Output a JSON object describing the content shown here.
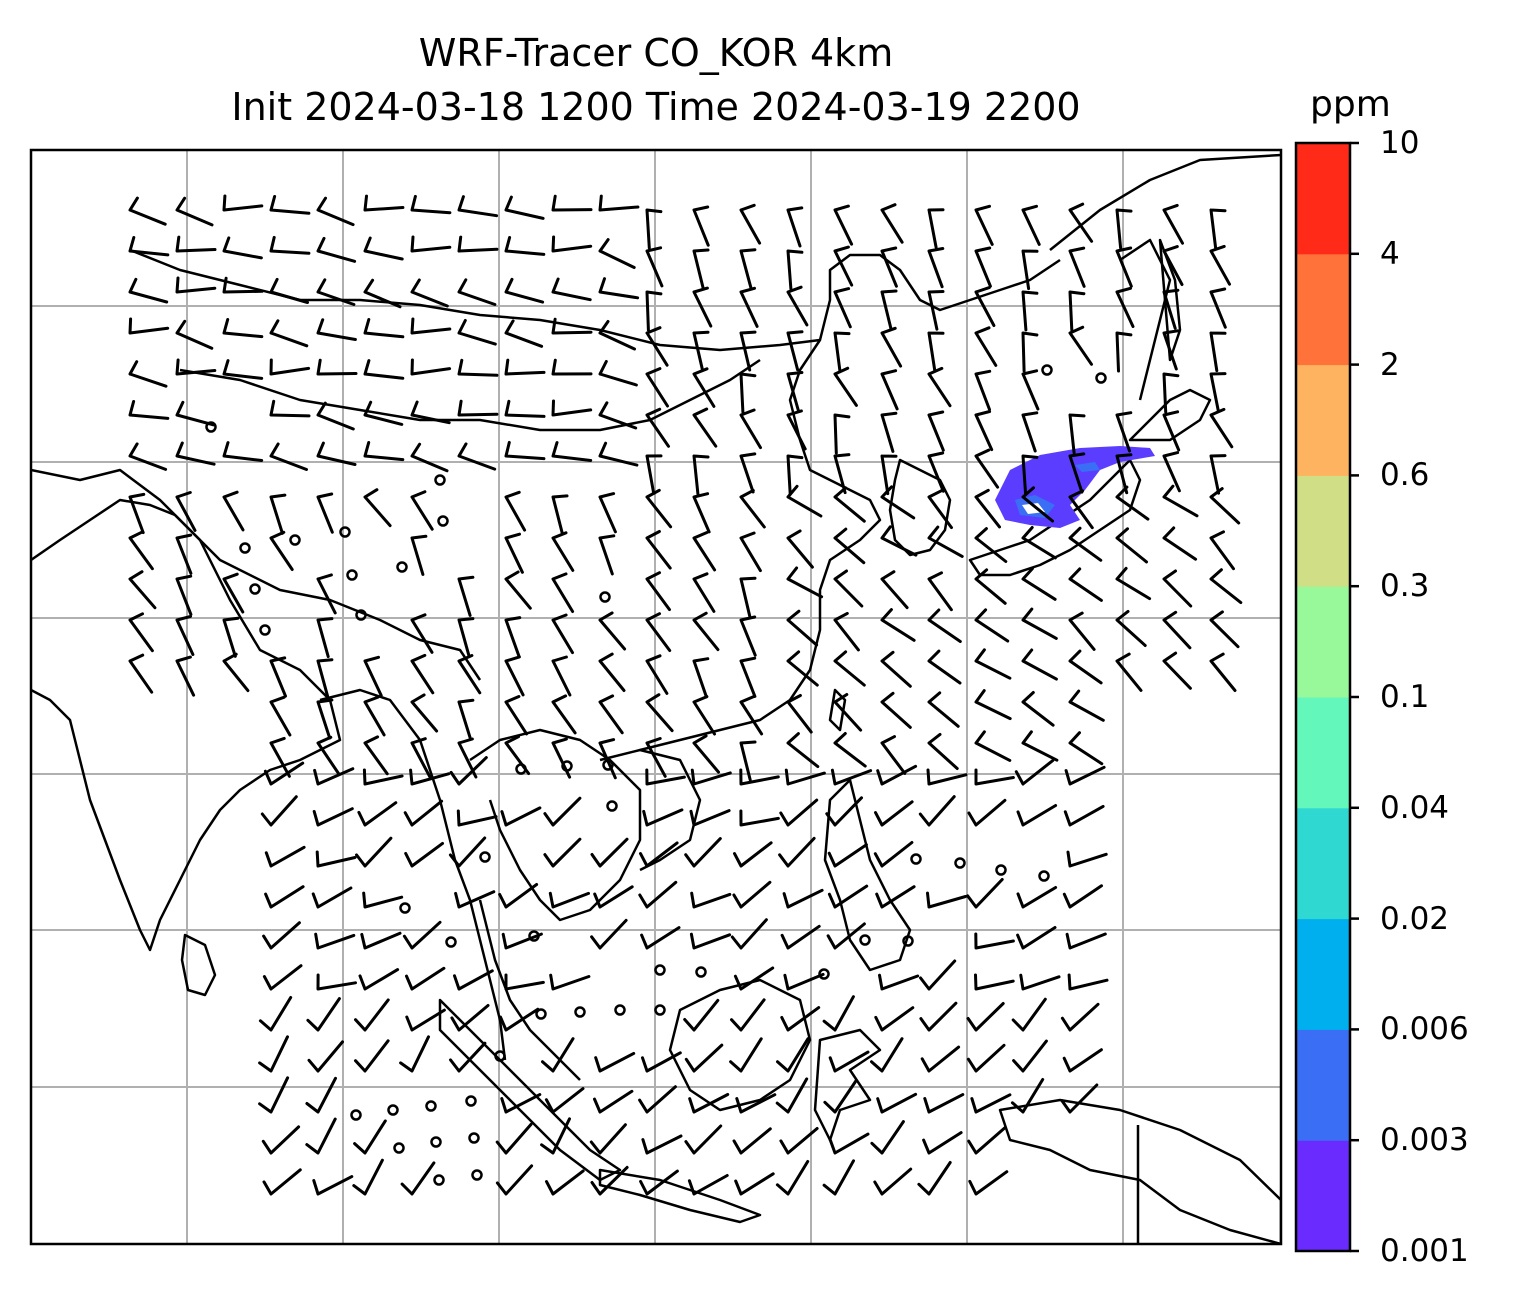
{
  "title_line1": "WRF-Tracer CO_KOR 4km",
  "title_line2": "Init 2024-03-18 1200 Time 2024-03-19 2200",
  "colorbar": {
    "unit": "ppm",
    "levels": [
      "0.001",
      "0.003",
      "0.006",
      "0.02",
      "0.04",
      "0.1",
      "0.3",
      "0.6",
      "2",
      "4",
      "10"
    ],
    "colors": [
      "#6a2bff",
      "#3a6ef5",
      "#00b0ee",
      "#2fd9d2",
      "#63f7bc",
      "#98f99a",
      "#d0df85",
      "#fdb35f",
      "#ff733a",
      "#ff2a17"
    ]
  },
  "map": {
    "gridlines": true,
    "plume_color": "#5a3dff",
    "features": [
      "coastlines",
      "wind-barbs",
      "calm-circles",
      "co-tracer-plume"
    ]
  }
}
